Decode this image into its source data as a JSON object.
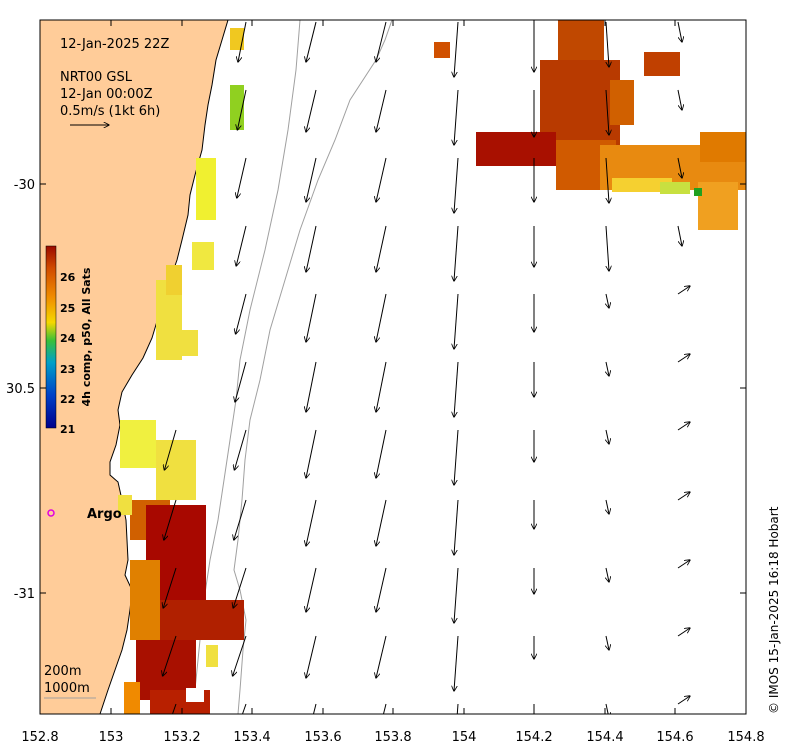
{
  "timestamp": "12-Jan-2025 22Z",
  "current": {
    "source": "NRT00 GSL",
    "time": "12-Jan 00:00Z",
    "scale_text": "0.5m/s (1kt 6h)"
  },
  "colorbar": {
    "label": "4h comp, p50, All Sats",
    "ticks": [
      "26",
      "25",
      "24",
      "23",
      "22",
      "21"
    ],
    "colors": [
      "#9b0a00",
      "#d04a00",
      "#f08c00",
      "#f5d800",
      "#39c039",
      "#00a0c8",
      "#0040c8",
      "#00008c"
    ]
  },
  "axes": {
    "x_ticks": [
      "152.8",
      "153",
      "153.2",
      "153.4",
      "153.6",
      "153.8",
      "154",
      "154.2",
      "154.4",
      "154.6",
      "154.8"
    ],
    "y_ticks": [
      "-30",
      "30.5",
      "-31"
    ]
  },
  "argo": {
    "label": "Argo",
    "color": "#e000e0"
  },
  "isobaths": [
    "200m",
    "1000m"
  ],
  "footer": "© IMOS 15-Jan-2025 16:18 Hobart",
  "colors": {
    "land": "#ffcc99",
    "warm": "#b01000",
    "mid": "#e07000",
    "cool": "#f0f030",
    "green": "#70d020"
  }
}
